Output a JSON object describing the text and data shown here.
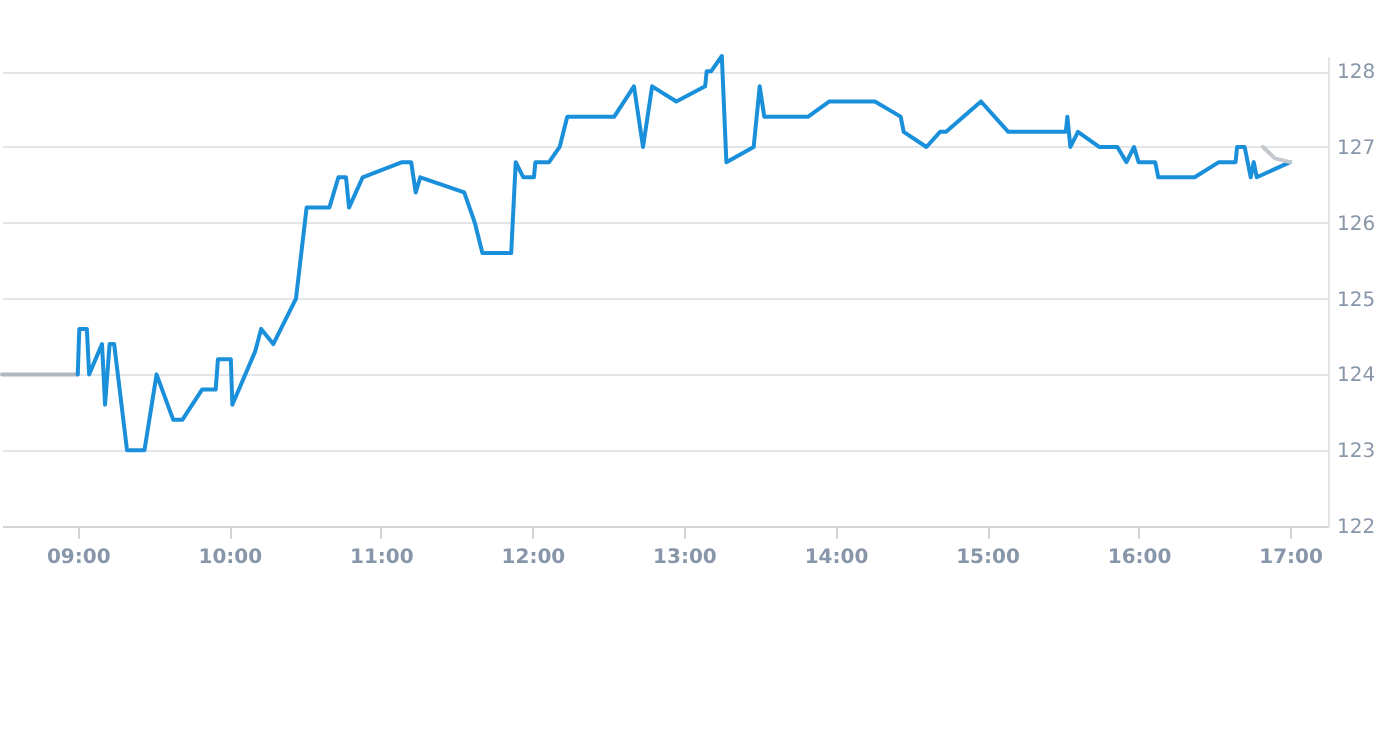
{
  "chart_data": {
    "type": "line",
    "series": [
      {
        "color": "#b0b8c0",
        "x": [
          8.5,
          9.0
        ],
        "values": [
          124.0,
          124.0
        ]
      },
      {
        "color": "#1a90db",
        "x": [
          9.0,
          9.01,
          9.06,
          9.075,
          9.16,
          9.18,
          9.21,
          9.24,
          9.325,
          9.44,
          9.52,
          9.63,
          9.69,
          9.82,
          9.91,
          9.925,
          10.01,
          10.02,
          10.17,
          10.21,
          10.29,
          10.44,
          10.51,
          10.66,
          10.72,
          10.77,
          10.79,
          10.88,
          11.14,
          11.2,
          11.23,
          11.26,
          11.55,
          11.62,
          11.67,
          11.86,
          11.89,
          11.94,
          12.01,
          12.02,
          12.11,
          12.18,
          12.23,
          12.54,
          12.67,
          12.73,
          12.79,
          12.95,
          13.14,
          13.15,
          13.18,
          13.25,
          13.28,
          13.46,
          13.5,
          13.53,
          13.82,
          13.96,
          14.26,
          14.43,
          14.45,
          14.6,
          14.69,
          14.73,
          14.96,
          15.14,
          15.52,
          15.53,
          15.55,
          15.6,
          15.74,
          15.86,
          15.92,
          15.97,
          16.0,
          16.11,
          16.13,
          16.37,
          16.53,
          16.64,
          16.65,
          16.7,
          16.74,
          16.76,
          16.78,
          17.0
        ],
        "values": [
          124.0,
          124.6,
          124.6,
          124.0,
          124.4,
          123.6,
          124.4,
          124.4,
          123.0,
          123.0,
          124.0,
          123.4,
          123.4,
          123.8,
          123.8,
          124.2,
          124.2,
          123.6,
          124.3,
          124.6,
          124.4,
          125.0,
          126.2,
          126.2,
          126.6,
          126.6,
          126.2,
          126.6,
          126.8,
          126.8,
          126.4,
          126.6,
          126.4,
          126.0,
          125.6,
          125.6,
          126.8,
          126.6,
          126.6,
          126.8,
          126.8,
          127.0,
          127.4,
          127.4,
          127.8,
          127.0,
          127.8,
          127.6,
          127.8,
          128.0,
          128.0,
          128.2,
          126.8,
          127.0,
          127.8,
          127.4,
          127.4,
          127.6,
          127.6,
          127.4,
          127.2,
          127.0,
          127.2,
          127.2,
          127.6,
          127.2,
          127.2,
          127.4,
          127.0,
          127.2,
          127.0,
          127.0,
          126.8,
          127.0,
          126.8,
          126.8,
          126.6,
          126.6,
          126.8,
          126.8,
          127.0,
          127.0,
          126.6,
          126.8,
          126.6,
          126.8
        ]
      },
      {
        "color": "#c4c9ce",
        "x": [
          16.82,
          16.9,
          17.0
        ],
        "values": [
          127.0,
          126.85,
          126.8
        ]
      }
    ],
    "xlim": [
      8.5,
      17.25
    ],
    "xticks": [
      {
        "value": 9,
        "label": "09:00"
      },
      {
        "value": 10,
        "label": "10:00"
      },
      {
        "value": 11,
        "label": "11:00"
      },
      {
        "value": 12,
        "label": "12:00"
      },
      {
        "value": 13,
        "label": "13:00"
      },
      {
        "value": 14,
        "label": "14:00"
      },
      {
        "value": 15,
        "label": "15:00"
      },
      {
        "value": 16,
        "label": "16:00"
      },
      {
        "value": 17,
        "label": "17:00"
      }
    ],
    "ylim": [
      122,
      128.2
    ],
    "yticks": [
      122,
      123,
      124,
      125,
      126,
      127,
      128
    ],
    "grid": "y",
    "marker": "none",
    "line_style": "solid"
  }
}
